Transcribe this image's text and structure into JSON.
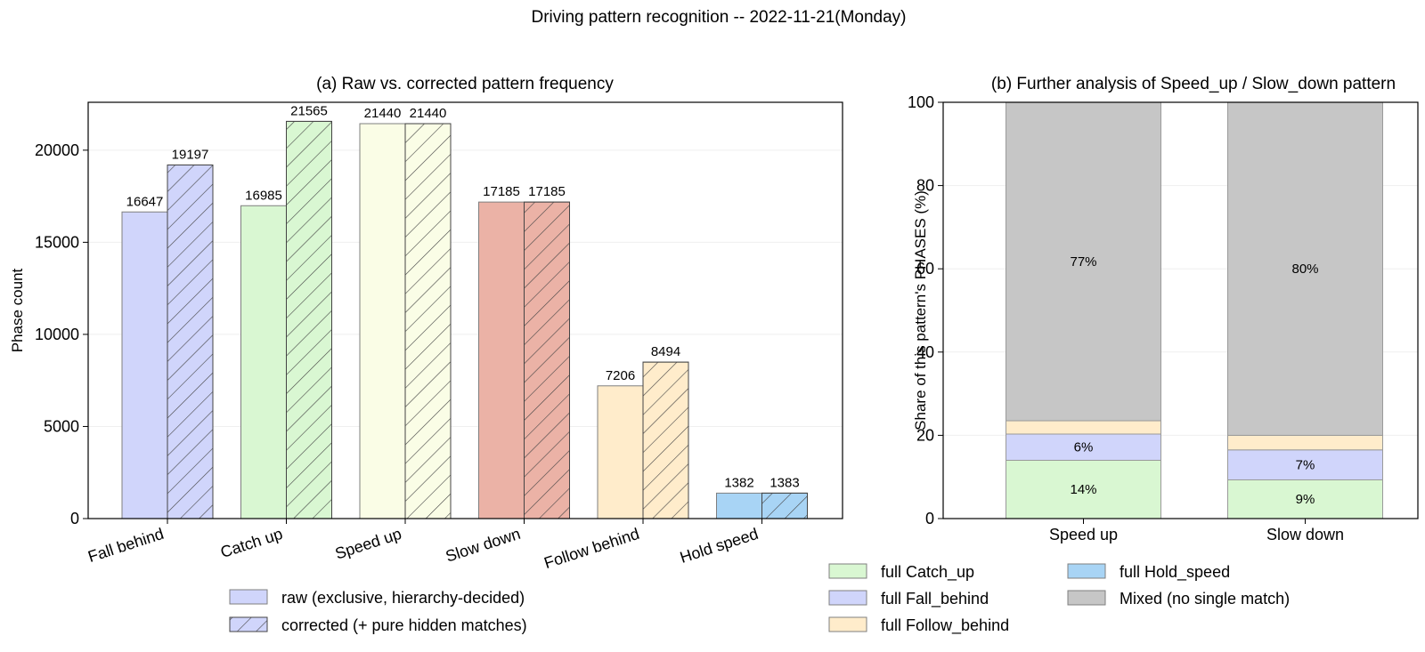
{
  "suptitle": "Driving pattern recognition -- 2022-11-21(Monday)",
  "colors": {
    "fall_behind": "#d0d5fb",
    "catch_up": "#d9f7d2",
    "speed_up": "#fafde6",
    "slow_down": "#ebb2a6",
    "follow_behind": "#ffeccb",
    "hold_speed": "#a8d4f5",
    "mixed": "#c6c6c6",
    "edge": "#7f7f7f",
    "hatch": "#444444"
  },
  "chart_data": [
    {
      "type": "bar",
      "title": "(a) Raw vs. corrected pattern frequency",
      "xlabel": "",
      "ylabel": "Phase count",
      "ylim": [
        0,
        22600
      ],
      "yticks": [
        0,
        5000,
        10000,
        15000,
        20000
      ],
      "grid": true,
      "categories": [
        "Fall behind",
        "Catch up",
        "Speed up",
        "Slow down",
        "Follow behind",
        "Hold speed"
      ],
      "category_colors": [
        "#d0d5fb",
        "#d9f7d2",
        "#fafde6",
        "#ebb2a6",
        "#ffeccb",
        "#a8d4f5"
      ],
      "series": [
        {
          "name": "raw (exclusive, hierarchy-decided)",
          "hatch": false,
          "values": [
            16647,
            16985,
            21440,
            17185,
            7206,
            1382
          ]
        },
        {
          "name": "corrected (+ pure hidden matches)",
          "hatch": true,
          "values": [
            19197,
            21565,
            21440,
            17185,
            8494,
            1383
          ]
        }
      ],
      "data_labels": [
        [
          "16647",
          "16985",
          "21440",
          "17185",
          "7206",
          "1382"
        ],
        [
          "19197",
          "21565",
          "21440",
          "17185",
          "8494",
          "1383"
        ]
      ],
      "legend_position": "below"
    },
    {
      "type": "bar",
      "stacked": true,
      "title": "(b) Further analysis of Speed_up / Slow_down pattern",
      "xlabel": "",
      "ylabel": "Share of this pattern's PHASES (%)",
      "ylim": [
        0,
        100
      ],
      "yticks": [
        0,
        20,
        40,
        60,
        80,
        100
      ],
      "grid": true,
      "categories": [
        "Speed up",
        "Slow down"
      ],
      "series": [
        {
          "name": "full Catch_up",
          "color": "#d9f7d2",
          "values": [
            14,
            9.3
          ],
          "labels": [
            "14%",
            "9%"
          ]
        },
        {
          "name": "full Fall_behind",
          "color": "#d0d5fb",
          "values": [
            6.3,
            7.2
          ],
          "labels": [
            "6%",
            "7%"
          ]
        },
        {
          "name": "full Follow_behind",
          "color": "#ffeccb",
          "values": [
            3.2,
            3.5
          ],
          "labels": [
            "",
            ""
          ]
        },
        {
          "name": "full Hold_speed",
          "color": "#a8d4f5",
          "values": [
            0,
            0
          ],
          "labels": [
            "",
            ""
          ]
        },
        {
          "name": "Mixed (no single match)",
          "color": "#c6c6c6",
          "values": [
            76.5,
            80
          ],
          "labels": [
            "77%",
            "80%"
          ]
        }
      ],
      "legend_position": "below"
    }
  ]
}
